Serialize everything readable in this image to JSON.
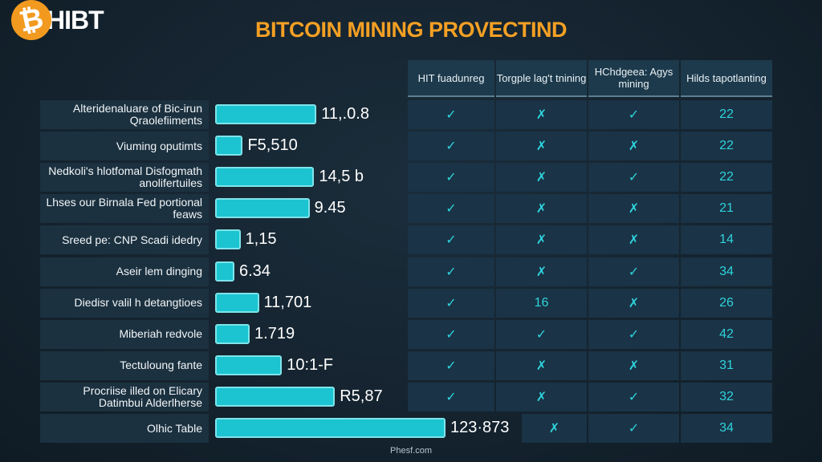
{
  "logo": {
    "symbol": "₿",
    "brand": "HIBT"
  },
  "chart_data": {
    "type": "bar",
    "title": "BITCOIN MINING PROVECTIND",
    "orientation": "horizontal",
    "categories": [
      "Alteridenaluare of Bic-irun Qraolefiiments",
      "Viuming oputimts",
      "Nedkoli's hlotfomal Disfogmath anolifertuiles",
      "Lhses our Birnala Fed portional feaws",
      "Sreed pe: CNP Scadi idedry",
      "Aseir lem dinging",
      "Diedisr valil h detangtioes",
      "Miberiah redvole",
      "Tectuloung fante",
      "Procriise illed on Elicary Datimbui Alderlherse",
      "Olhic Table"
    ],
    "value_labels": [
      "11,.0.8",
      "F5,510",
      "14,5 b",
      "9.45",
      "1,15",
      "6.34",
      "11,701",
      "1.719",
      "10:1-F",
      "R5,87",
      "123·873"
    ],
    "bar_level": [
      0.44,
      0.12,
      0.43,
      0.41,
      0.11,
      0.08,
      0.19,
      0.15,
      0.29,
      0.52,
      1.0
    ],
    "bar_color": "#1bc4d0"
  },
  "table": {
    "headers": [
      "HIT fuadunreg",
      "Torgple lag't tnining",
      "HChdgeea: Agys mining",
      "Hilds tapotlanting"
    ],
    "rows": [
      [
        "✓",
        "✗",
        "✓",
        "22"
      ],
      [
        "✓",
        "✗",
        "✗",
        "22"
      ],
      [
        "✓",
        "✗",
        "✓",
        "22"
      ],
      [
        "✓",
        "✗",
        "✗",
        "21"
      ],
      [
        "✓",
        "✗",
        "✗",
        "14"
      ],
      [
        "✓",
        "✗",
        "✓",
        "34"
      ],
      [
        "✓",
        "16",
        "✗",
        "26"
      ],
      [
        "✓",
        "✓",
        "✓",
        "42"
      ],
      [
        "✓",
        "✗",
        "✗",
        "31"
      ],
      [
        "✓",
        "✗",
        "✓",
        "32"
      ],
      [
        "✗",
        "✓",
        "34"
      ]
    ],
    "accent": "#2ed3dc"
  },
  "footer": "Phesf.com"
}
